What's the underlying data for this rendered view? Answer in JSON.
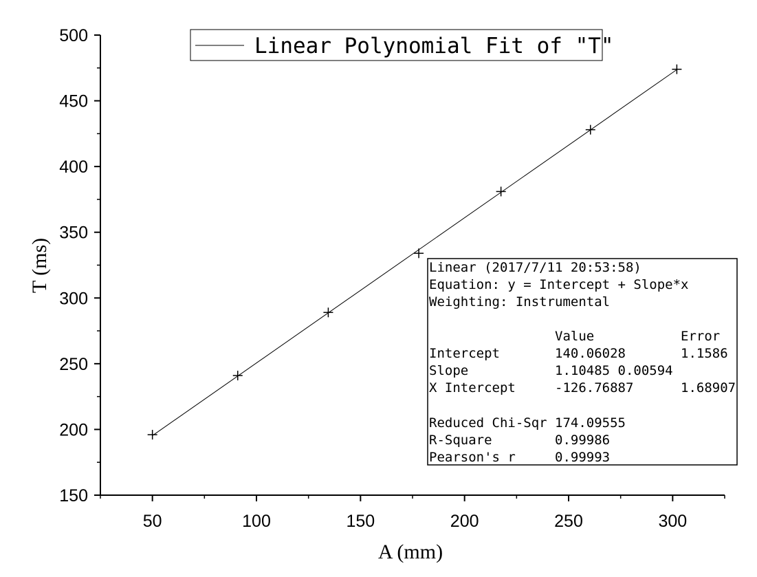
{
  "chart_data": {
    "type": "scatter",
    "title": "",
    "xlabel": "A (mm)",
    "ylabel": "T (ms)",
    "xlim": [
      25,
      325
    ],
    "ylim": [
      150,
      500
    ],
    "xticks": [
      50,
      100,
      150,
      200,
      250,
      300
    ],
    "xtick_labels": [
      "50",
      "100",
      "150",
      "200",
      "250",
      "300"
    ],
    "yticks": [
      150,
      200,
      250,
      300,
      350,
      400,
      450,
      500
    ],
    "ytick_labels": [
      "150",
      "200",
      "250",
      "300",
      "350",
      "400",
      "450",
      "500"
    ],
    "grid": false,
    "series": [
      {
        "marker": "plus",
        "color": "#000000",
        "x": [
          50,
          91,
          134.5,
          178,
          217.5,
          260.5,
          302
        ],
        "y": [
          196,
          241,
          289,
          334,
          381,
          428,
          474
        ]
      }
    ],
    "fit": {
      "type": "linear",
      "name": "Linear Polynomial Fit of \"T\"",
      "intercept": 140.06028,
      "slope": 1.10485,
      "x_range": [
        50,
        302
      ],
      "color": "#000000"
    },
    "legend": {
      "placement": "top-center",
      "entries": [
        "Linear Polynomial Fit of \"T\""
      ]
    },
    "stats_table": {
      "header_lines": [
        "Linear (2017/7/11 20:53:58)",
        "Equation: y = Intercept + Slope*x",
        "Weighting: Instrumental"
      ],
      "columns": [
        "",
        "Value",
        "Error"
      ],
      "rows": [
        [
          "Intercept",
          "140.06028",
          "1.1586"
        ],
        [
          "Slope",
          "1.10485 0.00594",
          ""
        ],
        [
          "X Intercept",
          "-126.76887",
          "1.68907"
        ]
      ],
      "footer_rows": [
        [
          "Reduced Chi-Sqr",
          "174.09555"
        ],
        [
          "R-Square",
          "0.99986"
        ],
        [
          "Pearson's r",
          "0.99993"
        ]
      ]
    }
  }
}
